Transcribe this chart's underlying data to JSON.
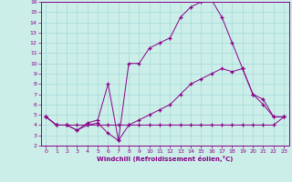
{
  "xlabel": "Windchill (Refroidissement éolien,°C)",
  "bg_color": "#cceee8",
  "grid_color": "#aadddd",
  "line_color": "#880088",
  "xlim": [
    -0.5,
    23.5
  ],
  "ylim": [
    2,
    16
  ],
  "xticks": [
    0,
    1,
    2,
    3,
    4,
    5,
    6,
    7,
    8,
    9,
    10,
    11,
    12,
    13,
    14,
    15,
    16,
    17,
    18,
    19,
    20,
    21,
    22,
    23
  ],
  "yticks": [
    2,
    3,
    4,
    5,
    6,
    7,
    8,
    9,
    10,
    11,
    12,
    13,
    14,
    15,
    16
  ],
  "line1_x": [
    0,
    1,
    2,
    3,
    4,
    5,
    6,
    7,
    8,
    9,
    10,
    11,
    12,
    13,
    14,
    15,
    16,
    17,
    18,
    19,
    20,
    21,
    22,
    23
  ],
  "line1_y": [
    4.8,
    4,
    4,
    4,
    4,
    4,
    4,
    4,
    4,
    4,
    4,
    4,
    4,
    4,
    4,
    4,
    4,
    4,
    4,
    4,
    4,
    4,
    4,
    4.8
  ],
  "line2_x": [
    0,
    1,
    2,
    3,
    4,
    5,
    6,
    7,
    8,
    9,
    10,
    11,
    12,
    13,
    14,
    15,
    16,
    17,
    18,
    19,
    20,
    21,
    22,
    23
  ],
  "line2_y": [
    4.8,
    4,
    4,
    3.5,
    4,
    4.2,
    3.2,
    2.5,
    4,
    4.5,
    5,
    5.5,
    6,
    7,
    8,
    8.5,
    9,
    9.5,
    9.2,
    9.5,
    7,
    6.5,
    4.8,
    4.8
  ],
  "line3_x": [
    0,
    1,
    2,
    3,
    4,
    5,
    6,
    7,
    8,
    9,
    10,
    11,
    12,
    13,
    14,
    15,
    16,
    17,
    18,
    19,
    20,
    21,
    22,
    23
  ],
  "line3_y": [
    4.8,
    4,
    4,
    3.5,
    4.2,
    4.5,
    8,
    2.5,
    10,
    10,
    11.5,
    12,
    12.5,
    14.5,
    15.5,
    16,
    16.2,
    14.5,
    12,
    9.5,
    7,
    6,
    4.8,
    4.8
  ]
}
